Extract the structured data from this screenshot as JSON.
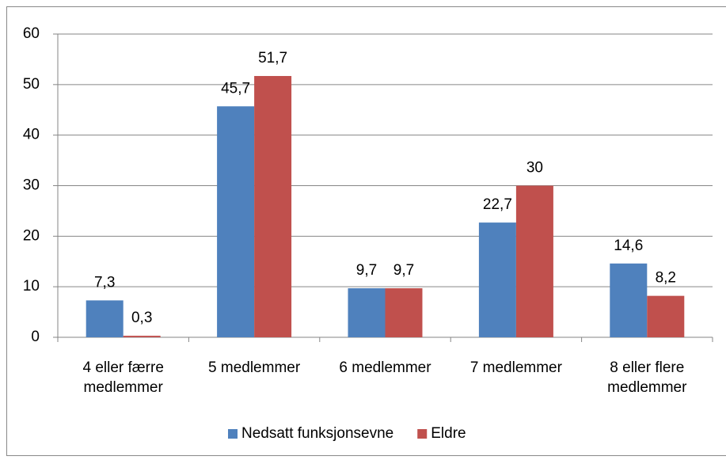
{
  "chart_data": {
    "type": "bar",
    "categories": [
      "4 eller færre medlemmer",
      "5 medlemmer",
      "6 medlemmer",
      "7 medlemmer",
      "8 eller flere medlemmer"
    ],
    "series": [
      {
        "name": "Nedsatt funksjonsevne",
        "color": "#4f81bd",
        "values": [
          7.3,
          45.7,
          9.7,
          22.7,
          14.6
        ],
        "value_labels": [
          "7,3",
          "45,7",
          "9,7",
          "22,7",
          "14,6"
        ]
      },
      {
        "name": "Eldre",
        "color": "#c0504d",
        "values": [
          0.3,
          51.7,
          9.7,
          30,
          8.2
        ],
        "value_labels": [
          "0,3",
          "51,7",
          "9,7",
          "30",
          "8,2"
        ]
      }
    ],
    "ylim": [
      0,
      60
    ],
    "yticks": [
      0,
      10,
      20,
      30,
      40,
      50,
      60
    ],
    "grid": true,
    "legend": "bottom"
  }
}
